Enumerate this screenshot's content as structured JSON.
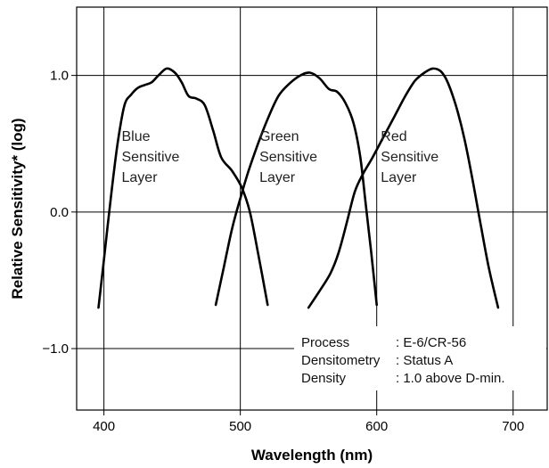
{
  "chart_data": {
    "type": "line",
    "title": "",
    "xlabel": "Wavelength (nm)",
    "ylabel": "Relative Sensitivity* (log)",
    "xlim": [
      380,
      725
    ],
    "ylim": [
      -1.45,
      1.5
    ],
    "x_ticks": [
      400,
      500,
      600,
      700
    ],
    "y_ticks": [
      1.0,
      0.0,
      -1.0
    ],
    "y_tick_labels": [
      "1.0",
      "0.0",
      "−1.0"
    ],
    "grid": true,
    "legend": "none",
    "series": [
      {
        "name": "Blue Sensitive Layer",
        "label_lines": [
          "Blue",
          "Sensitive",
          "Layer"
        ],
        "label_pos": [
          413,
          0.52
        ],
        "color": "#000000",
        "points": [
          [
            396,
            -0.7
          ],
          [
            400,
            -0.35
          ],
          [
            405,
            0.1
          ],
          [
            410,
            0.5
          ],
          [
            415,
            0.78
          ],
          [
            420,
            0.86
          ],
          [
            425,
            0.91
          ],
          [
            430,
            0.93
          ],
          [
            435,
            0.95
          ],
          [
            440,
            1.0
          ],
          [
            446,
            1.05
          ],
          [
            452,
            1.02
          ],
          [
            457,
            0.95
          ],
          [
            462,
            0.85
          ],
          [
            468,
            0.83
          ],
          [
            474,
            0.78
          ],
          [
            480,
            0.6
          ],
          [
            486,
            0.4
          ],
          [
            494,
            0.3
          ],
          [
            501,
            0.18
          ],
          [
            507,
            0.0
          ],
          [
            513,
            -0.3
          ],
          [
            520,
            -0.68
          ]
        ]
      },
      {
        "name": "Green Sensitive Layer",
        "label_lines": [
          "Green",
          "Sensitive",
          "Layer"
        ],
        "label_pos": [
          514,
          0.52
        ],
        "color": "#000000",
        "points": [
          [
            482,
            -0.68
          ],
          [
            488,
            -0.4
          ],
          [
            494,
            -0.12
          ],
          [
            500,
            0.1
          ],
          [
            506,
            0.3
          ],
          [
            513,
            0.5
          ],
          [
            520,
            0.68
          ],
          [
            528,
            0.85
          ],
          [
            536,
            0.94
          ],
          [
            544,
            1.0
          ],
          [
            551,
            1.02
          ],
          [
            558,
            0.98
          ],
          [
            565,
            0.9
          ],
          [
            571,
            0.88
          ],
          [
            577,
            0.8
          ],
          [
            583,
            0.65
          ],
          [
            588,
            0.4
          ],
          [
            592,
            0.05
          ],
          [
            596,
            -0.3
          ],
          [
            600,
            -0.68
          ]
        ]
      },
      {
        "name": "Red Sensitive Layer",
        "label_lines": [
          "Red",
          "Sensitive",
          "Layer"
        ],
        "label_pos": [
          603,
          0.52
        ],
        "color": "#000000",
        "points": [
          [
            550,
            -0.7
          ],
          [
            558,
            -0.58
          ],
          [
            566,
            -0.45
          ],
          [
            572,
            -0.3
          ],
          [
            578,
            -0.08
          ],
          [
            584,
            0.15
          ],
          [
            590,
            0.28
          ],
          [
            597,
            0.4
          ],
          [
            605,
            0.55
          ],
          [
            613,
            0.7
          ],
          [
            621,
            0.85
          ],
          [
            628,
            0.96
          ],
          [
            635,
            1.02
          ],
          [
            641,
            1.05
          ],
          [
            647,
            1.03
          ],
          [
            652,
            0.95
          ],
          [
            658,
            0.78
          ],
          [
            664,
            0.55
          ],
          [
            670,
            0.25
          ],
          [
            676,
            -0.08
          ],
          [
            682,
            -0.4
          ],
          [
            689,
            -0.7
          ]
        ]
      }
    ],
    "annotation": {
      "rows": [
        {
          "key": "Process",
          "value": ": E-6/CR-56"
        },
        {
          "key": "Densitometry",
          "value": ": Status A"
        },
        {
          "key": "Density",
          "value": ": 1.0 above D-min."
        }
      ]
    }
  }
}
